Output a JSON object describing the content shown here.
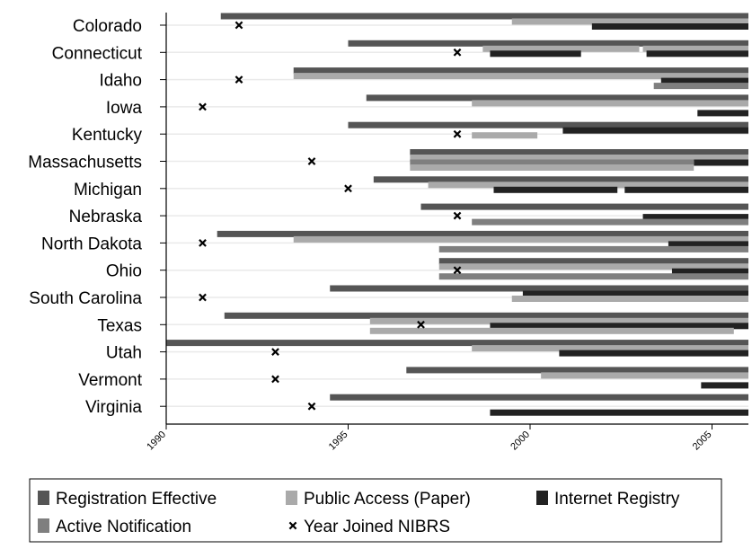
{
  "chart_data": {
    "type": "bar",
    "subtype": "timeline",
    "title": "",
    "xlabel": "",
    "ylabel": "",
    "xlim": [
      1990,
      2006
    ],
    "x_ticks": [
      1990,
      1995,
      2000,
      2005
    ],
    "x_tick_labels": [
      "1990",
      "1995",
      "2000",
      "2005"
    ],
    "grid": "horizontal",
    "legend_position": "bottom",
    "colors": {
      "registration": "#555555",
      "public": "#aaaaaa",
      "internet": "#222222",
      "active": "#7f7f7f",
      "marker": "#000000",
      "rowline": "#eaeaea",
      "axis": "#000000"
    },
    "legend": [
      {
        "key": "registration",
        "label": "Registration Effective"
      },
      {
        "key": "public",
        "label": "Public Access (Paper)"
      },
      {
        "key": "internet",
        "label": "Internet Registry"
      },
      {
        "key": "active",
        "label": "Active Notification"
      },
      {
        "key": "nibrs",
        "label": "Year Joined NIBRS"
      }
    ],
    "states": [
      {
        "name": "Colorado",
        "nibrs": 1992,
        "bars": [
          {
            "series": "registration",
            "start": 1991.5,
            "lane": "top"
          },
          {
            "series": "public",
            "start": 1999.5,
            "lane": "mid"
          },
          {
            "series": "internet",
            "start": 2001.7,
            "lane": "low"
          }
        ]
      },
      {
        "name": "Connecticut",
        "nibrs": 1998,
        "bars": [
          {
            "series": "registration",
            "start": 1995,
            "lane": "top"
          },
          {
            "series": "public",
            "start": 1998.7,
            "end": 2003,
            "lane": "mid"
          },
          {
            "series": "public",
            "start": 2003.1,
            "lane": "mid"
          },
          {
            "series": "internet",
            "start": 1998.9,
            "end": 2001.4,
            "lane": "low"
          },
          {
            "series": "internet",
            "start": 2003.2,
            "lane": "low"
          }
        ]
      },
      {
        "name": "Idaho",
        "nibrs": 1992,
        "bars": [
          {
            "series": "registration",
            "start": 1993.5,
            "lane": "top"
          },
          {
            "series": "public",
            "start": 1993.5,
            "lane": "mid"
          },
          {
            "series": "internet",
            "start": 2003.6,
            "lane": "low"
          },
          {
            "series": "active",
            "start": 2003.4,
            "lane": "bottom"
          }
        ]
      },
      {
        "name": "Iowa",
        "nibrs": 1991,
        "bars": [
          {
            "series": "registration",
            "start": 1995.5,
            "lane": "top"
          },
          {
            "series": "public",
            "start": 1998.4,
            "lane": "mid"
          },
          {
            "series": "internet",
            "start": 2004.6,
            "lane": "bottom"
          }
        ]
      },
      {
        "name": "Kentucky",
        "nibrs": 1998,
        "bars": [
          {
            "series": "registration",
            "start": 1995,
            "lane": "top"
          },
          {
            "series": "internet",
            "start": 2000.9,
            "lane": "mid"
          },
          {
            "series": "public",
            "start": 1998.4,
            "end": 2000.2,
            "lane": "low"
          }
        ]
      },
      {
        "name": "Massachusetts",
        "nibrs": 1994,
        "bars": [
          {
            "series": "registration",
            "start": 1996.7,
            "lane": "top"
          },
          {
            "series": "public",
            "start": 1996.7,
            "lane": "mid"
          },
          {
            "series": "internet",
            "start": 2004.5,
            "lane": "low"
          },
          {
            "series": "active",
            "start": 1996.7,
            "end": 2004.5,
            "lane": "low"
          },
          {
            "series": "public",
            "start": 1996.7,
            "end": 2004.5,
            "lane": "bottom"
          }
        ]
      },
      {
        "name": "Michigan",
        "nibrs": 1995,
        "bars": [
          {
            "series": "registration",
            "start": 1995.7,
            "lane": "top"
          },
          {
            "series": "public",
            "start": 1997.2,
            "lane": "mid"
          },
          {
            "series": "internet",
            "start": 1999,
            "end": 2002.4,
            "lane": "low"
          },
          {
            "series": "internet",
            "start": 2002.6,
            "lane": "low"
          }
        ]
      },
      {
        "name": "Nebraska",
        "nibrs": 1998,
        "bars": [
          {
            "series": "registration",
            "start": 1997,
            "lane": "top"
          },
          {
            "series": "internet",
            "start": 2003.1,
            "lane": "low"
          },
          {
            "series": "active",
            "start": 1998.4,
            "lane": "bottom"
          }
        ]
      },
      {
        "name": "North Dakota",
        "nibrs": 1991,
        "bars": [
          {
            "series": "registration",
            "start": 1991.4,
            "lane": "top"
          },
          {
            "series": "public",
            "start": 1993.5,
            "lane": "mid"
          },
          {
            "series": "internet",
            "start": 2003.8,
            "lane": "low"
          },
          {
            "series": "active",
            "start": 1997.5,
            "lane": "bottom"
          }
        ]
      },
      {
        "name": "Ohio",
        "nibrs": 1998,
        "bars": [
          {
            "series": "registration",
            "start": 1997.5,
            "lane": "top"
          },
          {
            "series": "public",
            "start": 1997.5,
            "lane": "mid"
          },
          {
            "series": "internet",
            "start": 2003.9,
            "lane": "low"
          },
          {
            "series": "active",
            "start": 1997.5,
            "lane": "bottom"
          }
        ]
      },
      {
        "name": "South Carolina",
        "nibrs": 1991,
        "bars": [
          {
            "series": "registration",
            "start": 1994.5,
            "lane": "top"
          },
          {
            "series": "internet",
            "start": 1999.8,
            "lane": "mid"
          },
          {
            "series": "public",
            "start": 1999.5,
            "lane": "low"
          }
        ]
      },
      {
        "name": "Texas",
        "nibrs": 1997,
        "bars": [
          {
            "series": "registration",
            "start": 1991.6,
            "lane": "top"
          },
          {
            "series": "public",
            "start": 1995.6,
            "lane": "mid"
          },
          {
            "series": "internet",
            "start": 1998.9,
            "lane": "low"
          },
          {
            "series": "public",
            "start": 1995.6,
            "end": 2005.6,
            "lane": "bottom"
          }
        ]
      },
      {
        "name": "Utah",
        "nibrs": 1993,
        "bars": [
          {
            "series": "registration",
            "start": 1990,
            "lane": "top"
          },
          {
            "series": "public",
            "start": 1998.4,
            "lane": "mid"
          },
          {
            "series": "internet",
            "start": 2000.8,
            "lane": "low"
          }
        ]
      },
      {
        "name": "Vermont",
        "nibrs": 1993,
        "bars": [
          {
            "series": "registration",
            "start": 1996.6,
            "lane": "top"
          },
          {
            "series": "public",
            "start": 2000.3,
            "lane": "mid"
          },
          {
            "series": "internet",
            "start": 2004.7,
            "lane": "bottom"
          }
        ]
      },
      {
        "name": "Virginia",
        "nibrs": 1994,
        "bars": [
          {
            "series": "registration",
            "start": 1994.5,
            "lane": "top"
          },
          {
            "series": "internet",
            "start": 1998.9,
            "lane": "bottom"
          }
        ]
      }
    ]
  }
}
